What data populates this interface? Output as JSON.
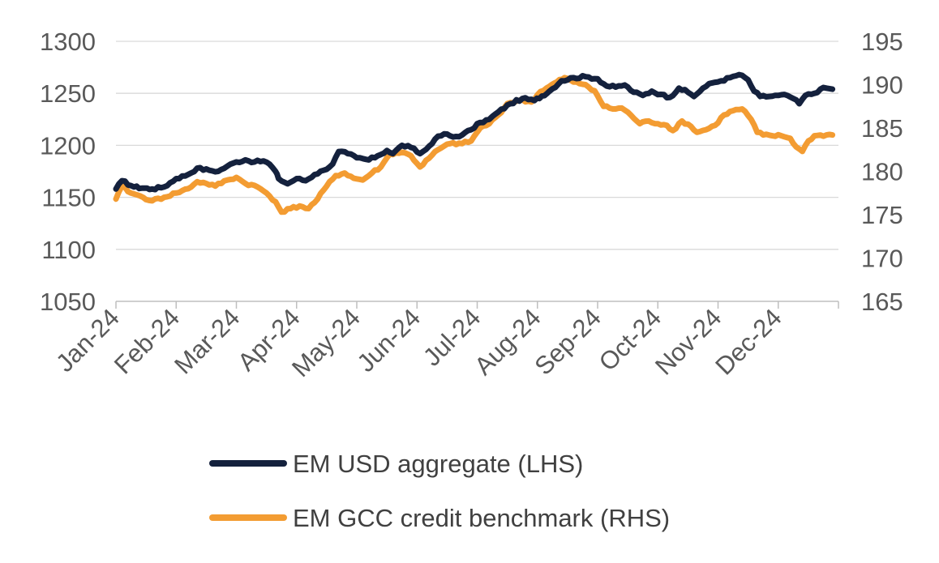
{
  "chart_data": {
    "type": "line",
    "title": "",
    "x_categories": [
      "Jan-24",
      "Feb-24",
      "Mar-24",
      "Apr-24",
      "May-24",
      "Jun-24",
      "Jul-24",
      "Aug-24",
      "Sep-24",
      "Oct-24",
      "Nov-24",
      "Dec-24"
    ],
    "left_axis": {
      "ylim": [
        1050,
        1300
      ],
      "ticks": [
        "1300",
        "1250",
        "1200",
        "1150",
        "1100",
        "1050"
      ]
    },
    "right_axis": {
      "ylim": [
        165,
        195
      ],
      "ticks": [
        "195",
        "190",
        "185",
        "180",
        "175",
        "170",
        "165"
      ]
    },
    "grid": true,
    "legend_position": "bottom",
    "series": [
      {
        "name": "EM USD aggregate (LHS)",
        "axis": "left",
        "color": "#14213d",
        "keypoints": [
          [
            0,
            1158
          ],
          [
            0.1,
            1166
          ],
          [
            0.3,
            1160
          ],
          [
            0.6,
            1158
          ],
          [
            0.8,
            1160
          ],
          [
            1.0,
            1168
          ],
          [
            1.2,
            1172
          ],
          [
            1.35,
            1178
          ],
          [
            1.55,
            1176
          ],
          [
            1.7,
            1175
          ],
          [
            1.85,
            1180
          ],
          [
            2.0,
            1184
          ],
          [
            2.15,
            1186
          ],
          [
            2.3,
            1184
          ],
          [
            2.45,
            1185
          ],
          [
            2.55,
            1182
          ],
          [
            2.65,
            1175
          ],
          [
            2.7,
            1168
          ],
          [
            2.85,
            1163
          ],
          [
            3.0,
            1168
          ],
          [
            3.15,
            1166
          ],
          [
            3.3,
            1172
          ],
          [
            3.45,
            1176
          ],
          [
            3.6,
            1182
          ],
          [
            3.7,
            1194
          ],
          [
            3.85,
            1192
          ],
          [
            4.0,
            1188
          ],
          [
            4.2,
            1186
          ],
          [
            4.35,
            1190
          ],
          [
            4.5,
            1195
          ],
          [
            4.6,
            1192
          ],
          [
            4.75,
            1200
          ],
          [
            4.9,
            1198
          ],
          [
            5.05,
            1192
          ],
          [
            5.15,
            1196
          ],
          [
            5.3,
            1206
          ],
          [
            5.45,
            1211
          ],
          [
            5.6,
            1208
          ],
          [
            5.75,
            1210
          ],
          [
            5.9,
            1215
          ],
          [
            6.05,
            1222
          ],
          [
            6.2,
            1225
          ],
          [
            6.35,
            1232
          ],
          [
            6.55,
            1240
          ],
          [
            6.75,
            1245
          ],
          [
            6.95,
            1243
          ],
          [
            7.2,
            1252
          ],
          [
            7.4,
            1262
          ],
          [
            7.6,
            1265
          ],
          [
            7.8,
            1266
          ],
          [
            8.0,
            1264
          ],
          [
            8.15,
            1257
          ],
          [
            8.3,
            1256
          ],
          [
            8.45,
            1258
          ],
          [
            8.6,
            1251
          ],
          [
            8.75,
            1248
          ],
          [
            8.9,
            1252
          ],
          [
            9.05,
            1249
          ],
          [
            9.2,
            1246
          ],
          [
            9.35,
            1255
          ],
          [
            9.5,
            1251
          ],
          [
            9.6,
            1247
          ],
          [
            9.75,
            1255
          ],
          [
            9.9,
            1260
          ],
          [
            10.05,
            1262
          ],
          [
            10.2,
            1265
          ],
          [
            10.35,
            1268
          ],
          [
            10.5,
            1263
          ],
          [
            10.6,
            1252
          ],
          [
            10.7,
            1247
          ],
          [
            10.85,
            1247
          ],
          [
            11.0,
            1248
          ],
          [
            11.15,
            1248
          ],
          [
            11.25,
            1245
          ],
          [
            11.35,
            1240
          ],
          [
            11.45,
            1248
          ],
          [
            11.6,
            1250
          ],
          [
            11.7,
            1254
          ],
          [
            11.8,
            1255
          ],
          [
            11.9,
            1254
          ]
        ]
      },
      {
        "name": "EM GCC credit benchmark (RHS)",
        "axis": "right",
        "color": "#f39c32",
        "keypoints": [
          [
            0,
            176.8
          ],
          [
            0.1,
            178.3
          ],
          [
            0.25,
            177.5
          ],
          [
            0.45,
            177.0
          ],
          [
            0.6,
            176.6
          ],
          [
            0.8,
            177.0
          ],
          [
            1.0,
            177.5
          ],
          [
            1.2,
            178.0
          ],
          [
            1.35,
            178.8
          ],
          [
            1.5,
            178.6
          ],
          [
            1.65,
            178.3
          ],
          [
            1.85,
            179.0
          ],
          [
            2.0,
            179.3
          ],
          [
            2.15,
            178.6
          ],
          [
            2.35,
            178.2
          ],
          [
            2.5,
            177.5
          ],
          [
            2.65,
            176.5
          ],
          [
            2.75,
            175.3
          ],
          [
            2.9,
            175.7
          ],
          [
            3.05,
            176.0
          ],
          [
            3.2,
            175.7
          ],
          [
            3.35,
            176.8
          ],
          [
            3.5,
            178.3
          ],
          [
            3.65,
            179.5
          ],
          [
            3.8,
            179.8
          ],
          [
            3.95,
            179.2
          ],
          [
            4.1,
            179.0
          ],
          [
            4.25,
            179.8
          ],
          [
            4.4,
            180.5
          ],
          [
            4.55,
            182.0
          ],
          [
            4.75,
            182.2
          ],
          [
            4.9,
            181.8
          ],
          [
            5.05,
            180.5
          ],
          [
            5.2,
            181.5
          ],
          [
            5.35,
            182.5
          ],
          [
            5.55,
            183.2
          ],
          [
            5.75,
            183.2
          ],
          [
            5.9,
            183.5
          ],
          [
            6.05,
            185.0
          ],
          [
            6.2,
            185.5
          ],
          [
            6.35,
            186.5
          ],
          [
            6.5,
            187.8
          ],
          [
            6.7,
            188.2
          ],
          [
            6.9,
            188.0
          ],
          [
            7.05,
            189.2
          ],
          [
            7.2,
            189.8
          ],
          [
            7.45,
            190.8
          ],
          [
            7.6,
            190.3
          ],
          [
            7.8,
            190.0
          ],
          [
            7.95,
            189.3
          ],
          [
            8.1,
            187.5
          ],
          [
            8.25,
            187.2
          ],
          [
            8.4,
            187.3
          ],
          [
            8.55,
            186.5
          ],
          [
            8.7,
            185.5
          ],
          [
            8.85,
            185.8
          ],
          [
            9.0,
            185.5
          ],
          [
            9.15,
            185.3
          ],
          [
            9.25,
            184.7
          ],
          [
            9.4,
            185.8
          ],
          [
            9.55,
            185.2
          ],
          [
            9.65,
            184.5
          ],
          [
            9.8,
            184.8
          ],
          [
            9.95,
            185.3
          ],
          [
            10.1,
            186.5
          ],
          [
            10.25,
            187.0
          ],
          [
            10.4,
            187.2
          ],
          [
            10.55,
            186.0
          ],
          [
            10.65,
            184.5
          ],
          [
            10.75,
            184.2
          ],
          [
            10.9,
            184.1
          ],
          [
            11.05,
            184.1
          ],
          [
            11.2,
            183.8
          ],
          [
            11.3,
            182.8
          ],
          [
            11.4,
            182.3
          ],
          [
            11.5,
            183.5
          ],
          [
            11.6,
            184.1
          ],
          [
            11.8,
            184.2
          ],
          [
            11.9,
            184.2
          ]
        ]
      }
    ]
  }
}
